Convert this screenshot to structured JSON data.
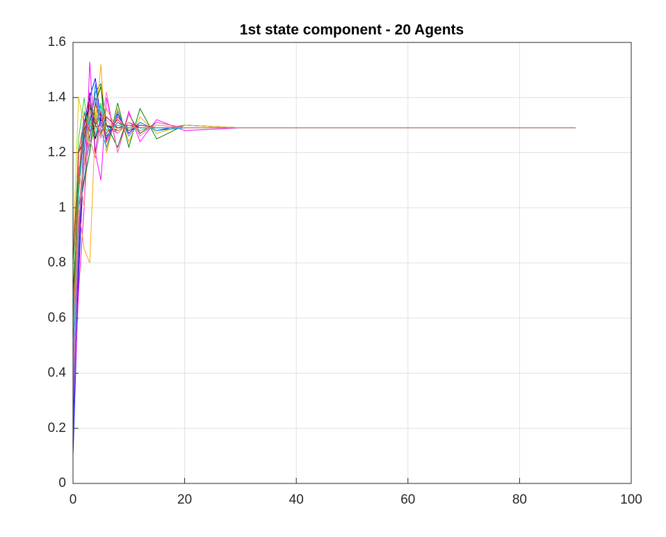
{
  "chart_data": {
    "type": "line",
    "title": "1st state component - 20 Agents",
    "x": [
      0,
      1,
      2,
      3,
      4,
      5,
      6,
      8,
      10,
      12,
      15,
      20,
      30,
      40,
      60,
      90
    ],
    "series": [
      {
        "color": "#0000ff",
        "values": [
          0.1,
          0.75,
          1.2,
          1.4,
          1.47,
          1.32,
          1.25,
          1.34,
          1.27,
          1.31,
          1.28,
          1.3,
          1.29,
          1.29,
          1.29,
          1.29
        ]
      },
      {
        "color": "#ff0000",
        "values": [
          0.6,
          1.1,
          1.35,
          1.25,
          1.38,
          1.3,
          1.27,
          1.32,
          1.28,
          1.3,
          1.29,
          1.29,
          1.29,
          1.29,
          1.29,
          1.29
        ]
      },
      {
        "color": "#008000",
        "values": [
          0.5,
          0.9,
          1.15,
          1.3,
          1.42,
          1.45,
          1.2,
          1.38,
          1.22,
          1.36,
          1.25,
          1.3,
          1.29,
          1.29,
          1.29,
          1.29
        ]
      },
      {
        "color": "#ff00ff",
        "values": [
          0.2,
          0.7,
          1.0,
          1.53,
          1.2,
          1.1,
          1.4,
          1.2,
          1.35,
          1.24,
          1.32,
          1.28,
          1.29,
          1.29,
          1.29,
          1.29
        ]
      },
      {
        "color": "#e6c800",
        "values": [
          0.85,
          1.4,
          1.3,
          1.2,
          1.35,
          1.3,
          1.28,
          1.3,
          1.29,
          1.29,
          1.29,
          1.29,
          1.29,
          1.29,
          1.29,
          1.29
        ]
      },
      {
        "color": "#ffa500",
        "values": [
          0.45,
          1.0,
          0.85,
          0.8,
          1.3,
          1.52,
          1.2,
          1.36,
          1.24,
          1.33,
          1.27,
          1.3,
          1.29,
          1.29,
          1.29,
          1.29
        ]
      },
      {
        "color": "#00bfbf",
        "values": [
          0.3,
          0.85,
          1.2,
          1.35,
          1.3,
          1.33,
          1.28,
          1.3,
          1.29,
          1.29,
          1.29,
          1.29,
          1.29,
          1.29,
          1.29,
          1.29
        ]
      },
      {
        "color": "#000000",
        "values": [
          0.55,
          1.05,
          1.3,
          1.38,
          1.25,
          1.32,
          1.3,
          1.28,
          1.3,
          1.29,
          1.29,
          1.29,
          1.29,
          1.29,
          1.29,
          1.29
        ]
      },
      {
        "color": "#8b0000",
        "values": [
          0.8,
          1.2,
          1.25,
          1.4,
          1.3,
          1.27,
          1.33,
          1.29,
          1.3,
          1.29,
          1.29,
          1.29,
          1.29,
          1.29,
          1.29,
          1.29
        ]
      },
      {
        "color": "#1e90ff",
        "values": [
          0.35,
          0.95,
          1.1,
          1.25,
          1.45,
          1.28,
          1.22,
          1.35,
          1.26,
          1.31,
          1.28,
          1.29,
          1.29,
          1.29,
          1.29,
          1.29
        ]
      },
      {
        "color": "#32cd32",
        "values": [
          0.65,
          1.25,
          1.4,
          1.22,
          1.3,
          1.38,
          1.26,
          1.31,
          1.28,
          1.3,
          1.29,
          1.29,
          1.29,
          1.29,
          1.29,
          1.29
        ]
      },
      {
        "color": "#9400d3",
        "values": [
          0.25,
          0.8,
          1.3,
          1.42,
          1.2,
          1.34,
          1.3,
          1.27,
          1.31,
          1.29,
          1.29,
          1.29,
          1.29,
          1.29,
          1.29,
          1.29
        ]
      },
      {
        "color": "#ff8c69",
        "values": [
          0.4,
          1.15,
          1.0,
          1.35,
          1.33,
          1.25,
          1.36,
          1.28,
          1.3,
          1.28,
          1.3,
          1.29,
          1.29,
          1.29,
          1.29,
          1.29
        ]
      },
      {
        "color": "#006400",
        "values": [
          0.7,
          1.0,
          1.1,
          1.2,
          1.38,
          1.44,
          1.3,
          1.22,
          1.34,
          1.27,
          1.31,
          1.29,
          1.29,
          1.29,
          1.29,
          1.29
        ]
      },
      {
        "color": "#4169e1",
        "values": [
          0.15,
          0.9,
          1.25,
          1.32,
          1.4,
          1.3,
          1.26,
          1.31,
          1.29,
          1.29,
          1.29,
          1.29,
          1.29,
          1.29,
          1.29,
          1.29
        ]
      },
      {
        "color": "#dc143c",
        "values": [
          0.5,
          1.2,
          1.32,
          1.28,
          1.3,
          1.35,
          1.24,
          1.33,
          1.28,
          1.3,
          1.29,
          1.29,
          1.29,
          1.29,
          1.29,
          1.29
        ]
      },
      {
        "color": "#ff69b4",
        "values": [
          0.3,
          0.95,
          1.15,
          1.25,
          1.18,
          1.3,
          1.42,
          1.2,
          1.34,
          1.26,
          1.31,
          1.29,
          1.29,
          1.29,
          1.29,
          1.29
        ]
      },
      {
        "color": "#808000",
        "values": [
          0.6,
          1.1,
          1.28,
          1.36,
          1.32,
          1.27,
          1.3,
          1.29,
          1.29,
          1.29,
          1.29,
          1.29,
          1.29,
          1.29,
          1.29,
          1.29
        ]
      },
      {
        "color": "#00ced1",
        "values": [
          0.45,
          1.05,
          1.35,
          1.3,
          1.26,
          1.37,
          1.28,
          1.3,
          1.29,
          1.29,
          1.29,
          1.29,
          1.29,
          1.29,
          1.29,
          1.29
        ]
      },
      {
        "color": "#f08080",
        "values": [
          0.55,
          1.0,
          1.18,
          1.38,
          1.34,
          1.26,
          1.32,
          1.27,
          1.31,
          1.28,
          1.3,
          1.29,
          1.29,
          1.29,
          1.29,
          1.29
        ]
      }
    ],
    "xlim": [
      0,
      100
    ],
    "xticks": [
      0,
      20,
      40,
      60,
      80,
      100
    ],
    "ylim": [
      0,
      1.6
    ],
    "yticks": [
      0,
      0.2,
      0.4,
      0.6,
      0.8,
      1,
      1.2,
      1.4,
      1.6
    ],
    "grid": true
  }
}
